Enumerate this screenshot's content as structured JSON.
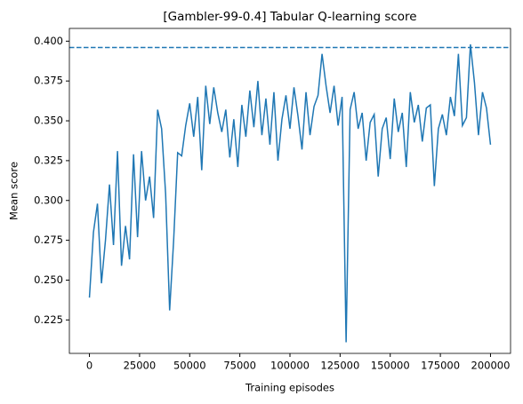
{
  "chart_data": {
    "type": "line",
    "title": "[Gambler-99-0.4] Tabular Q-learning score",
    "xlabel": "Training episodes",
    "ylabel": "Mean score",
    "x": [
      0,
      2000,
      4000,
      6000,
      8000,
      10000,
      12000,
      14000,
      16000,
      18000,
      20000,
      22000,
      24000,
      26000,
      28000,
      30000,
      32000,
      34000,
      36000,
      38000,
      40000,
      42000,
      44000,
      46000,
      48000,
      50000,
      52000,
      54000,
      56000,
      58000,
      60000,
      62000,
      64000,
      66000,
      68000,
      70000,
      72000,
      74000,
      76000,
      78000,
      80000,
      82000,
      84000,
      86000,
      88000,
      90000,
      92000,
      94000,
      96000,
      98000,
      100000,
      102000,
      104000,
      106000,
      108000,
      110000,
      112000,
      114000,
      116000,
      118000,
      120000,
      122000,
      124000,
      126000,
      128000,
      130000,
      132000,
      134000,
      136000,
      138000,
      140000,
      142000,
      144000,
      146000,
      148000,
      150000,
      152000,
      154000,
      156000,
      158000,
      160000,
      162000,
      164000,
      166000,
      168000,
      170000,
      172000,
      174000,
      176000,
      178000,
      180000,
      182000,
      184000,
      186000,
      188000,
      190000,
      192000,
      194000,
      196000,
      198000,
      200000
    ],
    "series": [
      {
        "name": "score",
        "color": "#1f77b4",
        "values": [
          0.239,
          0.28,
          0.298,
          0.248,
          0.275,
          0.31,
          0.272,
          0.331,
          0.259,
          0.284,
          0.263,
          0.329,
          0.277,
          0.331,
          0.3,
          0.315,
          0.289,
          0.357,
          0.345,
          0.304,
          0.231,
          0.275,
          0.33,
          0.328,
          0.347,
          0.361,
          0.34,
          0.365,
          0.319,
          0.372,
          0.348,
          0.371,
          0.355,
          0.343,
          0.357,
          0.327,
          0.351,
          0.321,
          0.36,
          0.34,
          0.369,
          0.346,
          0.375,
          0.341,
          0.364,
          0.335,
          0.368,
          0.325,
          0.351,
          0.366,
          0.345,
          0.371,
          0.353,
          0.332,
          0.368,
          0.341,
          0.359,
          0.366,
          0.392,
          0.372,
          0.355,
          0.372,
          0.347,
          0.365,
          0.211,
          0.357,
          0.368,
          0.345,
          0.355,
          0.325,
          0.349,
          0.354,
          0.315,
          0.345,
          0.352,
          0.326,
          0.364,
          0.343,
          0.355,
          0.321,
          0.368,
          0.349,
          0.36,
          0.337,
          0.358,
          0.36,
          0.309,
          0.345,
          0.354,
          0.341,
          0.365,
          0.353,
          0.392,
          0.347,
          0.352,
          0.398,
          0.374,
          0.341,
          0.368,
          0.358,
          0.335
        ]
      }
    ],
    "hline": {
      "value": 0.396,
      "color": "#1f77b4",
      "style": "dashed"
    },
    "xlim": [
      -10000,
      210000
    ],
    "ylim": [
      0.204,
      0.408
    ],
    "xticks": [
      0,
      25000,
      50000,
      75000,
      100000,
      125000,
      150000,
      175000,
      200000
    ],
    "yticks": [
      0.225,
      {
        "value": 0.25,
        "label": "0.250"
      },
      0.275,
      {
        "value": 0.3,
        "label": "0.300"
      },
      0.325,
      {
        "value": 0.35,
        "label": "0.350"
      },
      0.375,
      {
        "value": 0.4,
        "label": "0.400"
      }
    ],
    "grid": false
  }
}
